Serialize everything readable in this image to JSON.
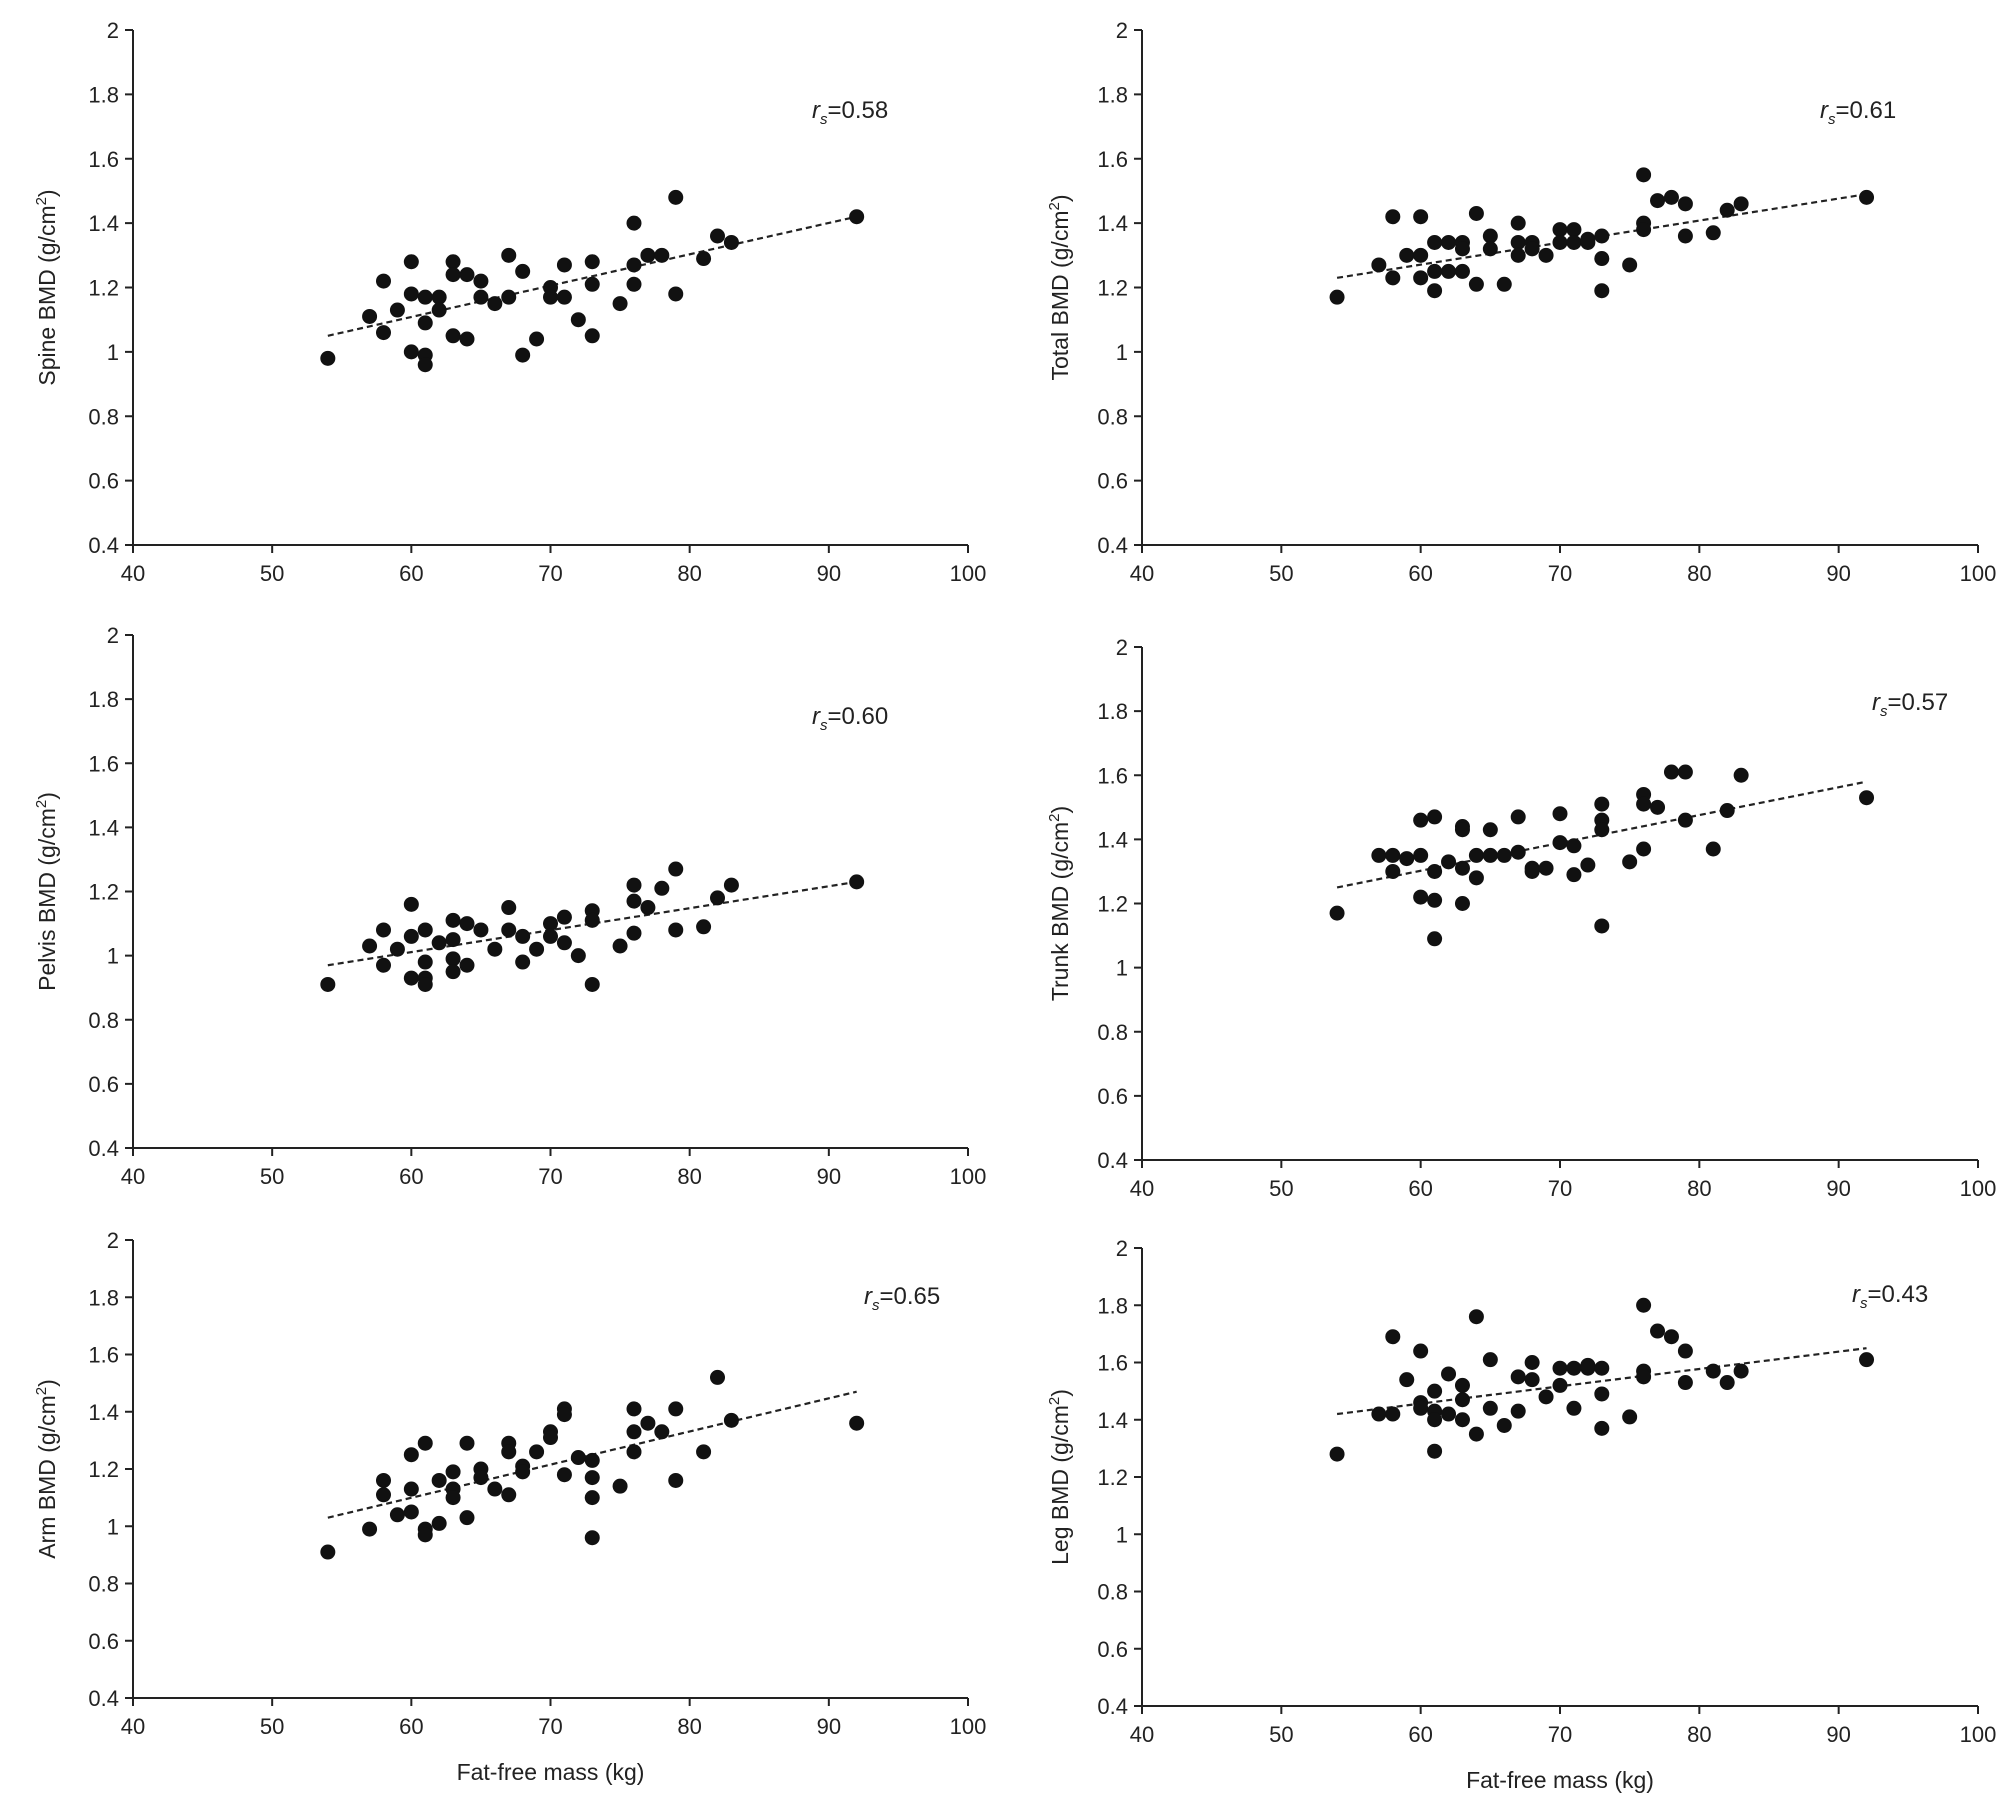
{
  "chart_data": [
    {
      "type": "scatter",
      "ylabel_main": "Spine BMD (g/cm",
      "ylabel_sup": "2",
      "ylabel_tail": ")",
      "xlabel": "",
      "xlim": [
        40,
        100
      ],
      "ylim": [
        0.4,
        2
      ],
      "xticks": [
        "40",
        "50",
        "60",
        "70",
        "80",
        "90",
        "100"
      ],
      "yticks": [
        "0.4",
        "0.6",
        "0.8",
        "1",
        "1.2",
        "1.4",
        "1.6",
        "1.8",
        "2"
      ],
      "annotation_r": "r",
      "annotation_sub": "s",
      "annotation_value": "=0.58",
      "trendline": {
        "x": [
          54,
          92
        ],
        "y": [
          1.05,
          1.42
        ]
      },
      "x": [
        54,
        57,
        58,
        58,
        59,
        60,
        60,
        60,
        61,
        61,
        61,
        61,
        62,
        62,
        63,
        63,
        63,
        64,
        64,
        65,
        65,
        66,
        67,
        67,
        68,
        68,
        69,
        70,
        70,
        71,
        71,
        72,
        73,
        73,
        73,
        75,
        76,
        76,
        76,
        77,
        78,
        79,
        79,
        81,
        82,
        83,
        92
      ],
      "y": [
        0.98,
        1.11,
        1.22,
        1.06,
        1.13,
        1.28,
        1.18,
        1.0,
        1.17,
        1.09,
        0.99,
        0.96,
        1.17,
        1.13,
        1.28,
        1.24,
        1.05,
        1.24,
        1.04,
        1.22,
        1.17,
        1.15,
        1.3,
        1.17,
        1.25,
        0.99,
        1.04,
        1.2,
        1.17,
        1.27,
        1.17,
        1.1,
        1.28,
        1.21,
        1.05,
        1.15,
        1.4,
        1.27,
        1.21,
        1.3,
        1.3,
        1.48,
        1.18,
        1.29,
        1.36,
        1.34,
        1.42
      ]
    },
    {
      "type": "scatter",
      "ylabel_main": "Total BMD (g/cm",
      "ylabel_sup": "2",
      "ylabel_tail": ")",
      "xlabel": "",
      "xlim": [
        40,
        100
      ],
      "ylim": [
        0.4,
        2
      ],
      "xticks": [
        "40",
        "50",
        "60",
        "70",
        "80",
        "90",
        "100"
      ],
      "yticks": [
        "0.4",
        "0.6",
        "0.8",
        "1",
        "1.2",
        "1.4",
        "1.6",
        "1.8",
        "2"
      ],
      "annotation_r": "r",
      "annotation_sub": "s",
      "annotation_value": "=0.61",
      "trendline": {
        "x": [
          54,
          92
        ],
        "y": [
          1.23,
          1.49
        ]
      },
      "x": [
        54,
        57,
        58,
        58,
        59,
        60,
        60,
        60,
        61,
        61,
        61,
        62,
        62,
        63,
        63,
        63,
        64,
        64,
        65,
        65,
        66,
        67,
        67,
        67,
        68,
        68,
        69,
        70,
        70,
        71,
        71,
        72,
        72,
        73,
        73,
        73,
        75,
        76,
        76,
        76,
        77,
        78,
        79,
        79,
        81,
        82,
        83,
        92
      ],
      "y": [
        1.17,
        1.27,
        1.42,
        1.23,
        1.3,
        1.42,
        1.3,
        1.23,
        1.34,
        1.25,
        1.19,
        1.34,
        1.25,
        1.34,
        1.32,
        1.25,
        1.43,
        1.21,
        1.36,
        1.32,
        1.21,
        1.4,
        1.34,
        1.3,
        1.34,
        1.32,
        1.3,
        1.38,
        1.34,
        1.38,
        1.34,
        1.34,
        1.35,
        1.36,
        1.29,
        1.19,
        1.27,
        1.55,
        1.4,
        1.38,
        1.47,
        1.48,
        1.46,
        1.36,
        1.37,
        1.44,
        1.46,
        1.48
      ]
    },
    {
      "type": "scatter",
      "ylabel_main": "Pelvis BMD (g/cm",
      "ylabel_sup": "2",
      "ylabel_tail": ")",
      "xlabel": "",
      "xlim": [
        40,
        100
      ],
      "ylim": [
        0.4,
        2
      ],
      "xticks": [
        "40",
        "50",
        "60",
        "70",
        "80",
        "90",
        "100"
      ],
      "yticks": [
        "0.4",
        "0.6",
        "0.8",
        "1",
        "1.2",
        "1.4",
        "1.6",
        "1.8",
        "2"
      ],
      "annotation_r": "r",
      "annotation_sub": "s",
      "annotation_value": "=0.60",
      "trendline": {
        "x": [
          54,
          92
        ],
        "y": [
          0.97,
          1.23
        ]
      },
      "x": [
        54,
        57,
        58,
        58,
        59,
        60,
        60,
        60,
        61,
        61,
        61,
        61,
        62,
        63,
        63,
        63,
        63,
        64,
        64,
        65,
        66,
        67,
        67,
        68,
        68,
        69,
        70,
        70,
        71,
        71,
        72,
        73,
        73,
        73,
        75,
        76,
        76,
        76,
        77,
        78,
        79,
        79,
        81,
        82,
        83,
        92
      ],
      "y": [
        0.91,
        1.03,
        1.08,
        0.97,
        1.02,
        1.16,
        1.06,
        0.93,
        1.08,
        0.98,
        0.93,
        0.91,
        1.04,
        1.11,
        1.05,
        0.99,
        0.95,
        1.1,
        0.97,
        1.08,
        1.02,
        1.15,
        1.08,
        1.06,
        0.98,
        1.02,
        1.1,
        1.06,
        1.12,
        1.04,
        1.0,
        1.14,
        1.11,
        0.91,
        1.03,
        1.22,
        1.17,
        1.07,
        1.15,
        1.21,
        1.27,
        1.08,
        1.09,
        1.18,
        1.22,
        1.23
      ]
    },
    {
      "type": "scatter",
      "ylabel_main": "Trunk BMD (g/cm",
      "ylabel_sup": "2",
      "ylabel_tail": ")",
      "xlabel": "",
      "xlim": [
        40,
        100
      ],
      "ylim": [
        0.4,
        2
      ],
      "xticks": [
        "40",
        "50",
        "60",
        "70",
        "80",
        "90",
        "100"
      ],
      "yticks": [
        "0.4",
        "0.6",
        "0.8",
        "1",
        "1.2",
        "1.4",
        "1.6",
        "1.8",
        "2"
      ],
      "annotation_r": "r",
      "annotation_sub": "s",
      "annotation_value": "=0.57",
      "trendline": {
        "x": [
          54,
          92
        ],
        "y": [
          1.25,
          1.58
        ]
      },
      "x": [
        54,
        57,
        58,
        58,
        59,
        60,
        60,
        60,
        61,
        61,
        61,
        61,
        62,
        63,
        63,
        63,
        63,
        64,
        64,
        65,
        65,
        66,
        67,
        67,
        68,
        68,
        69,
        70,
        70,
        71,
        71,
        72,
        73,
        73,
        73,
        73,
        75,
        76,
        76,
        76,
        77,
        78,
        79,
        79,
        81,
        82,
        83,
        92
      ],
      "y": [
        1.17,
        1.35,
        1.35,
        1.3,
        1.34,
        1.46,
        1.35,
        1.22,
        1.47,
        1.3,
        1.21,
        1.09,
        1.33,
        1.44,
        1.43,
        1.31,
        1.2,
        1.35,
        1.28,
        1.43,
        1.35,
        1.35,
        1.47,
        1.36,
        1.31,
        1.3,
        1.31,
        1.48,
        1.39,
        1.38,
        1.29,
        1.32,
        1.51,
        1.46,
        1.43,
        1.13,
        1.33,
        1.54,
        1.51,
        1.37,
        1.5,
        1.61,
        1.61,
        1.46,
        1.37,
        1.49,
        1.6,
        1.53
      ]
    },
    {
      "type": "scatter",
      "ylabel_main": "Arm BMD (g/cm",
      "ylabel_sup": "2",
      "ylabel_tail": ")",
      "xlabel": "Fat-free mass (kg)",
      "xlim": [
        40,
        100
      ],
      "ylim": [
        0.4,
        2
      ],
      "xticks": [
        "40",
        "50",
        "60",
        "70",
        "80",
        "90",
        "100"
      ],
      "yticks": [
        "0.4",
        "0.6",
        "0.8",
        "1",
        "1.2",
        "1.4",
        "1.6",
        "1.8",
        "2"
      ],
      "annotation_r": "r",
      "annotation_sub": "s",
      "annotation_value": "=0.65",
      "trendline": {
        "x": [
          54,
          92
        ],
        "y": [
          1.03,
          1.47
        ]
      },
      "x": [
        54,
        57,
        58,
        58,
        59,
        60,
        60,
        60,
        61,
        61,
        61,
        62,
        62,
        63,
        63,
        63,
        64,
        64,
        65,
        65,
        66,
        67,
        67,
        67,
        68,
        68,
        69,
        70,
        70,
        71,
        71,
        71,
        72,
        73,
        73,
        73,
        73,
        75,
        76,
        76,
        76,
        77,
        78,
        79,
        79,
        81,
        82,
        83,
        92
      ],
      "y": [
        0.91,
        0.99,
        1.16,
        1.11,
        1.04,
        1.25,
        1.13,
        1.05,
        1.29,
        0.99,
        0.97,
        1.16,
        1.01,
        1.19,
        1.13,
        1.1,
        1.29,
        1.03,
        1.2,
        1.17,
        1.13,
        1.29,
        1.26,
        1.11,
        1.21,
        1.19,
        1.26,
        1.33,
        1.31,
        1.41,
        1.39,
        1.18,
        1.24,
        1.23,
        1.17,
        1.1,
        0.96,
        1.14,
        1.41,
        1.33,
        1.26,
        1.36,
        1.33,
        1.41,
        1.16,
        1.26,
        1.52,
        1.37,
        1.36
      ]
    },
    {
      "type": "scatter",
      "ylabel_main": "Leg BMD (g/cm",
      "ylabel_sup": "2",
      "ylabel_tail": ")",
      "xlabel": "Fat-free mass (kg)",
      "xlim": [
        40,
        100
      ],
      "ylim": [
        0.4,
        2
      ],
      "xticks": [
        "40",
        "50",
        "60",
        "70",
        "80",
        "90",
        "100"
      ],
      "yticks": [
        "0.4",
        "0.6",
        "0.8",
        "1",
        "1.2",
        "1.4",
        "1.6",
        "1.8",
        "2"
      ],
      "annotation_r": "r",
      "annotation_sub": "s",
      "annotation_value": "=0.43",
      "trendline": {
        "x": [
          54,
          92
        ],
        "y": [
          1.42,
          1.65
        ]
      },
      "x": [
        54,
        57,
        58,
        58,
        59,
        60,
        60,
        60,
        61,
        61,
        61,
        61,
        62,
        62,
        63,
        63,
        63,
        64,
        64,
        65,
        65,
        66,
        67,
        67,
        68,
        68,
        69,
        70,
        70,
        71,
        71,
        72,
        72,
        73,
        73,
        73,
        75,
        76,
        76,
        76,
        77,
        78,
        79,
        79,
        81,
        82,
        83,
        92
      ],
      "y": [
        1.28,
        1.42,
        1.69,
        1.42,
        1.54,
        1.64,
        1.46,
        1.44,
        1.5,
        1.43,
        1.4,
        1.29,
        1.56,
        1.42,
        1.52,
        1.47,
        1.4,
        1.76,
        1.35,
        1.61,
        1.44,
        1.38,
        1.55,
        1.43,
        1.6,
        1.54,
        1.48,
        1.58,
        1.52,
        1.58,
        1.44,
        1.58,
        1.59,
        1.58,
        1.49,
        1.37,
        1.41,
        1.8,
        1.57,
        1.55,
        1.71,
        1.69,
        1.64,
        1.53,
        1.57,
        1.53,
        1.57,
        1.61
      ]
    }
  ]
}
